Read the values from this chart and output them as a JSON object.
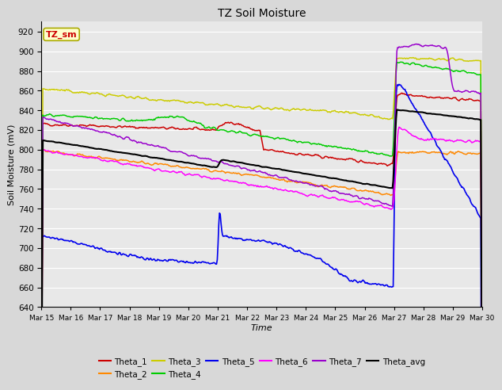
{
  "title": "TZ Soil Moisture",
  "xlabel": "Time",
  "ylabel": "Soil Moisture (mV)",
  "ylim": [
    640,
    930
  ],
  "yticks": [
    640,
    660,
    680,
    700,
    720,
    740,
    760,
    780,
    800,
    820,
    840,
    860,
    880,
    900,
    920
  ],
  "bg_color": "#e8e8e8",
  "grid_color": "#ffffff",
  "fig_bg": "#d8d8d8",
  "annotation_label": "TZ_sm",
  "annotation_color": "#cc0000",
  "annotation_bg": "#ffffcc",
  "annotation_border": "#aaaa00",
  "series": {
    "Theta_1": {
      "color": "#cc0000",
      "lw": 1.1
    },
    "Theta_2": {
      "color": "#ff8800",
      "lw": 1.1
    },
    "Theta_3": {
      "color": "#cccc00",
      "lw": 1.1
    },
    "Theta_4": {
      "color": "#00cc00",
      "lw": 1.1
    },
    "Theta_5": {
      "color": "#0000ee",
      "lw": 1.2
    },
    "Theta_6": {
      "color": "#ff00ff",
      "lw": 1.1
    },
    "Theta_7": {
      "color": "#9900cc",
      "lw": 1.1
    },
    "Theta_avg": {
      "color": "#000000",
      "lw": 1.5
    }
  },
  "date_labels": [
    "Mar 15",
    "Mar 16",
    "Mar 17",
    "Mar 18",
    "Mar 19",
    "Mar 20",
    "Mar 21",
    "Mar 22",
    "Mar 23",
    "Mar 24",
    "Mar 25",
    "Mar 26",
    "Mar 27",
    "Mar 28",
    "Mar 29",
    "Mar 30"
  ],
  "legend_order": [
    "Theta_1",
    "Theta_2",
    "Theta_3",
    "Theta_4",
    "Theta_5",
    "Theta_6",
    "Theta_7",
    "Theta_avg"
  ],
  "legend_ncol": 6
}
